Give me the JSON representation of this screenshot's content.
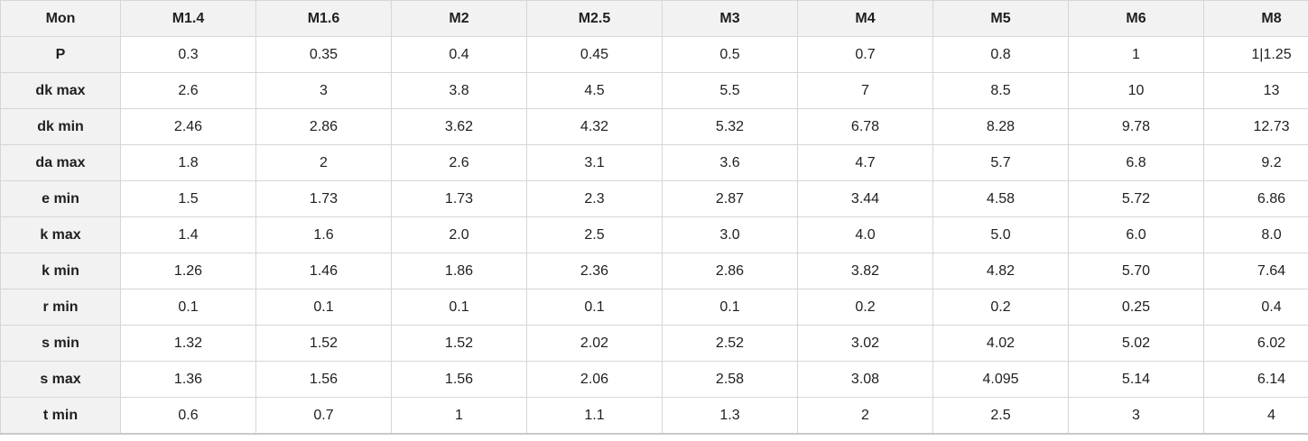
{
  "colors": {
    "header_bg": "#f2f2f2",
    "cell_bg": "#ffffff",
    "border": "#d6d6d6",
    "bottom_border": "#c9c9c9",
    "text": "#1f1f1f"
  },
  "chart_data": {
    "type": "table",
    "title": "",
    "columns": [
      "Mon",
      "M1.4",
      "M1.6",
      "M2",
      "M2.5",
      "M3",
      "M4",
      "M5",
      "M6",
      "M8"
    ],
    "rows": [
      {
        "label": "P",
        "values": [
          "0.3",
          "0.35",
          "0.4",
          "0.45",
          "0.5",
          "0.7",
          "0.8",
          "1",
          "1|1.25"
        ]
      },
      {
        "label": "dk max",
        "values": [
          "2.6",
          "3",
          "3.8",
          "4.5",
          "5.5",
          "7",
          "8.5",
          "10",
          "13"
        ]
      },
      {
        "label": "dk min",
        "values": [
          "2.46",
          "2.86",
          "3.62",
          "4.32",
          "5.32",
          "6.78",
          "8.28",
          "9.78",
          "12.73"
        ]
      },
      {
        "label": "da max",
        "values": [
          "1.8",
          "2",
          "2.6",
          "3.1",
          "3.6",
          "4.7",
          "5.7",
          "6.8",
          "9.2"
        ]
      },
      {
        "label": "e min",
        "values": [
          "1.5",
          "1.73",
          "1.73",
          "2.3",
          "2.87",
          "3.44",
          "4.58",
          "5.72",
          "6.86"
        ]
      },
      {
        "label": "k max",
        "values": [
          "1.4",
          "1.6",
          "2.0",
          "2.5",
          "3.0",
          "4.0",
          "5.0",
          "6.0",
          "8.0"
        ]
      },
      {
        "label": "k min",
        "values": [
          "1.26",
          "1.46",
          "1.86",
          "2.36",
          "2.86",
          "3.82",
          "4.82",
          "5.70",
          "7.64"
        ]
      },
      {
        "label": "r min",
        "values": [
          "0.1",
          "0.1",
          "0.1",
          "0.1",
          "0.1",
          "0.2",
          "0.2",
          "0.25",
          "0.4"
        ]
      },
      {
        "label": "s min",
        "values": [
          "1.32",
          "1.52",
          "1.52",
          "2.02",
          "2.52",
          "3.02",
          "4.02",
          "5.02",
          "6.02"
        ]
      },
      {
        "label": "s max",
        "values": [
          "1.36",
          "1.56",
          "1.56",
          "2.06",
          "2.58",
          "3.08",
          "4.095",
          "5.14",
          "6.14"
        ]
      },
      {
        "label": "t min",
        "values": [
          "0.6",
          "0.7",
          "1",
          "1.1",
          "1.3",
          "2",
          "2.5",
          "3",
          "4"
        ]
      }
    ]
  }
}
